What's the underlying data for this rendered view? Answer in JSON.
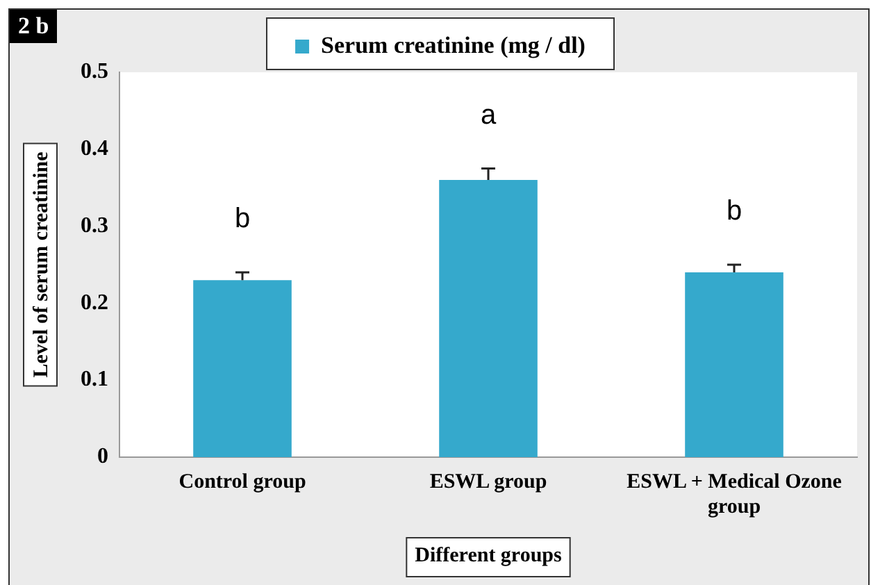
{
  "chart_data": {
    "type": "bar",
    "xlabel": "Different groups",
    "ylabel": "Level of serum creatinine",
    "categories": [
      "Control group",
      "ESWL group",
      "ESWL + Medical Ozone group"
    ],
    "series": [
      {
        "name": "Serum creatinine (mg / dl)",
        "color": "#35a9cc",
        "values": [
          0.23,
          0.36,
          0.24
        ],
        "errors": [
          [
            0.23,
            0.24
          ],
          [
            0.36,
            0.375
          ],
          [
            0.24,
            0.25
          ]
        ]
      }
    ],
    "ylim": [
      0,
      0.5
    ],
    "yticks": [
      0,
      0.1,
      0.2,
      0.3,
      0.4,
      0.5
    ],
    "grid": false,
    "legend": "top",
    "annotations": [
      "2 b",
      {
        "text": "b",
        "x": "Control group",
        "y": 0.23
      },
      {
        "text": "a",
        "x": "ESWL group",
        "y": 0.36
      },
      {
        "text": "b",
        "x": "ESWL + Medical Ozone group",
        "y": 0.24
      }
    ]
  }
}
